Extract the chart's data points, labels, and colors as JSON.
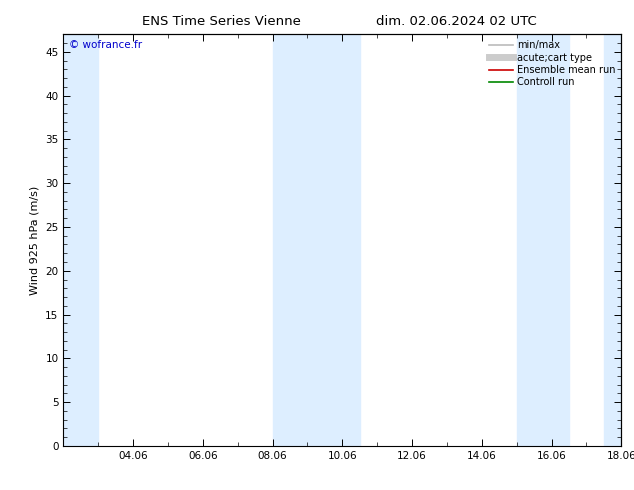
{
  "title_left": "ENS Time Series Vienne",
  "title_right": "dim. 02.06.2024 02 UTC",
  "ylabel": "Wind 925 hPa (m/s)",
  "watermark": "© wofrance.fr",
  "xlim": [
    0,
    16
  ],
  "ylim": [
    0,
    47
  ],
  "yticks": [
    0,
    5,
    10,
    15,
    20,
    25,
    30,
    35,
    40,
    45
  ],
  "xtick_labels": [
    "04.06",
    "06.06",
    "08.06",
    "10.06",
    "12.06",
    "14.06",
    "16.06",
    "18.06"
  ],
  "xtick_positions": [
    2,
    4,
    6,
    8,
    10,
    12,
    14,
    16
  ],
  "shaded_bands": [
    [
      0,
      1.0
    ],
    [
      6.0,
      8.5
    ],
    [
      13.0,
      14.5
    ],
    [
      15.5,
      16.0
    ]
  ],
  "shade_color": "#ddeeff",
  "background_color": "#ffffff",
  "legend_items": [
    {
      "label": "min/max",
      "color": "#bbbbbb",
      "lw": 1.2,
      "style": "solid"
    },
    {
      "label": "acute;cart type",
      "color": "#cccccc",
      "lw": 5,
      "style": "solid"
    },
    {
      "label": "Ensemble mean run",
      "color": "#cc0000",
      "lw": 1.2,
      "style": "solid"
    },
    {
      "label": "Controll run",
      "color": "#008800",
      "lw": 1.2,
      "style": "solid"
    }
  ],
  "title_fontsize": 9.5,
  "ylabel_fontsize": 8,
  "tick_fontsize": 7.5,
  "legend_fontsize": 7,
  "watermark_fontsize": 7.5,
  "watermark_color": "#0000cc"
}
